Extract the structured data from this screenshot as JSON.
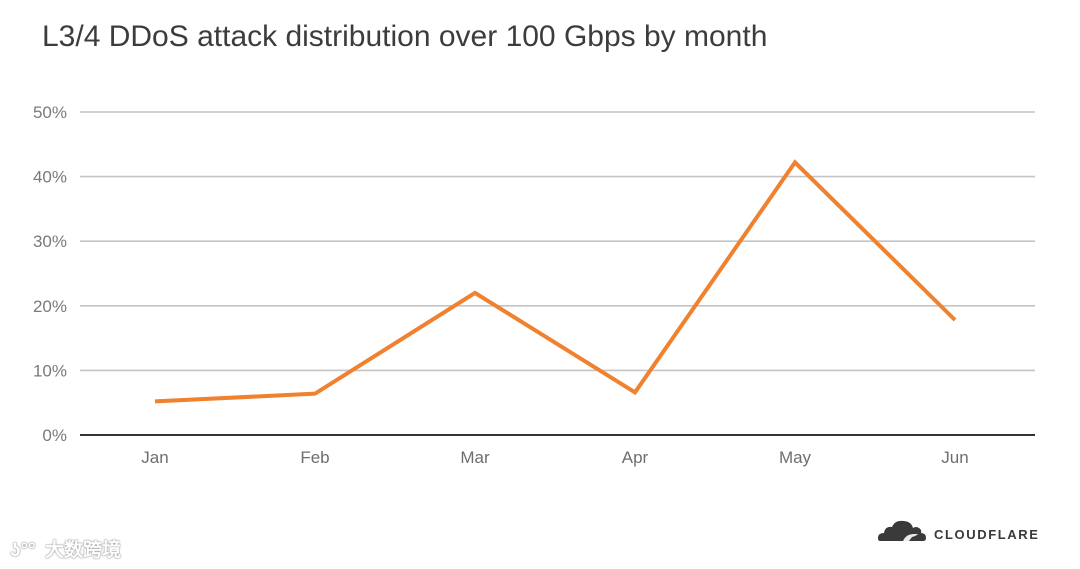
{
  "chart_data": {
    "type": "line",
    "title": "L3/4 DDoS attack distribution over 100 Gbps by month",
    "categories": [
      "Jan",
      "Feb",
      "Mar",
      "Apr",
      "May",
      "Jun"
    ],
    "series": [
      {
        "values": [
          5.2,
          6.4,
          22.0,
          6.6,
          42.2,
          17.8
        ],
        "color": "#f0812e"
      }
    ],
    "ylim": [
      0,
      50
    ],
    "yticks": [
      0,
      10,
      20,
      30,
      40,
      50
    ],
    "ytick_labels": [
      "0%",
      "10%",
      "20%",
      "30%",
      "40%",
      "50%"
    ],
    "grid": true,
    "legend": "none"
  },
  "brand": {
    "name": "CLOUDFLARE",
    "icon": "cloud-icon",
    "color": "#3a3a3a"
  },
  "watermark": {
    "text": "大数跨境",
    "icon": "watermark-logo-icon"
  }
}
